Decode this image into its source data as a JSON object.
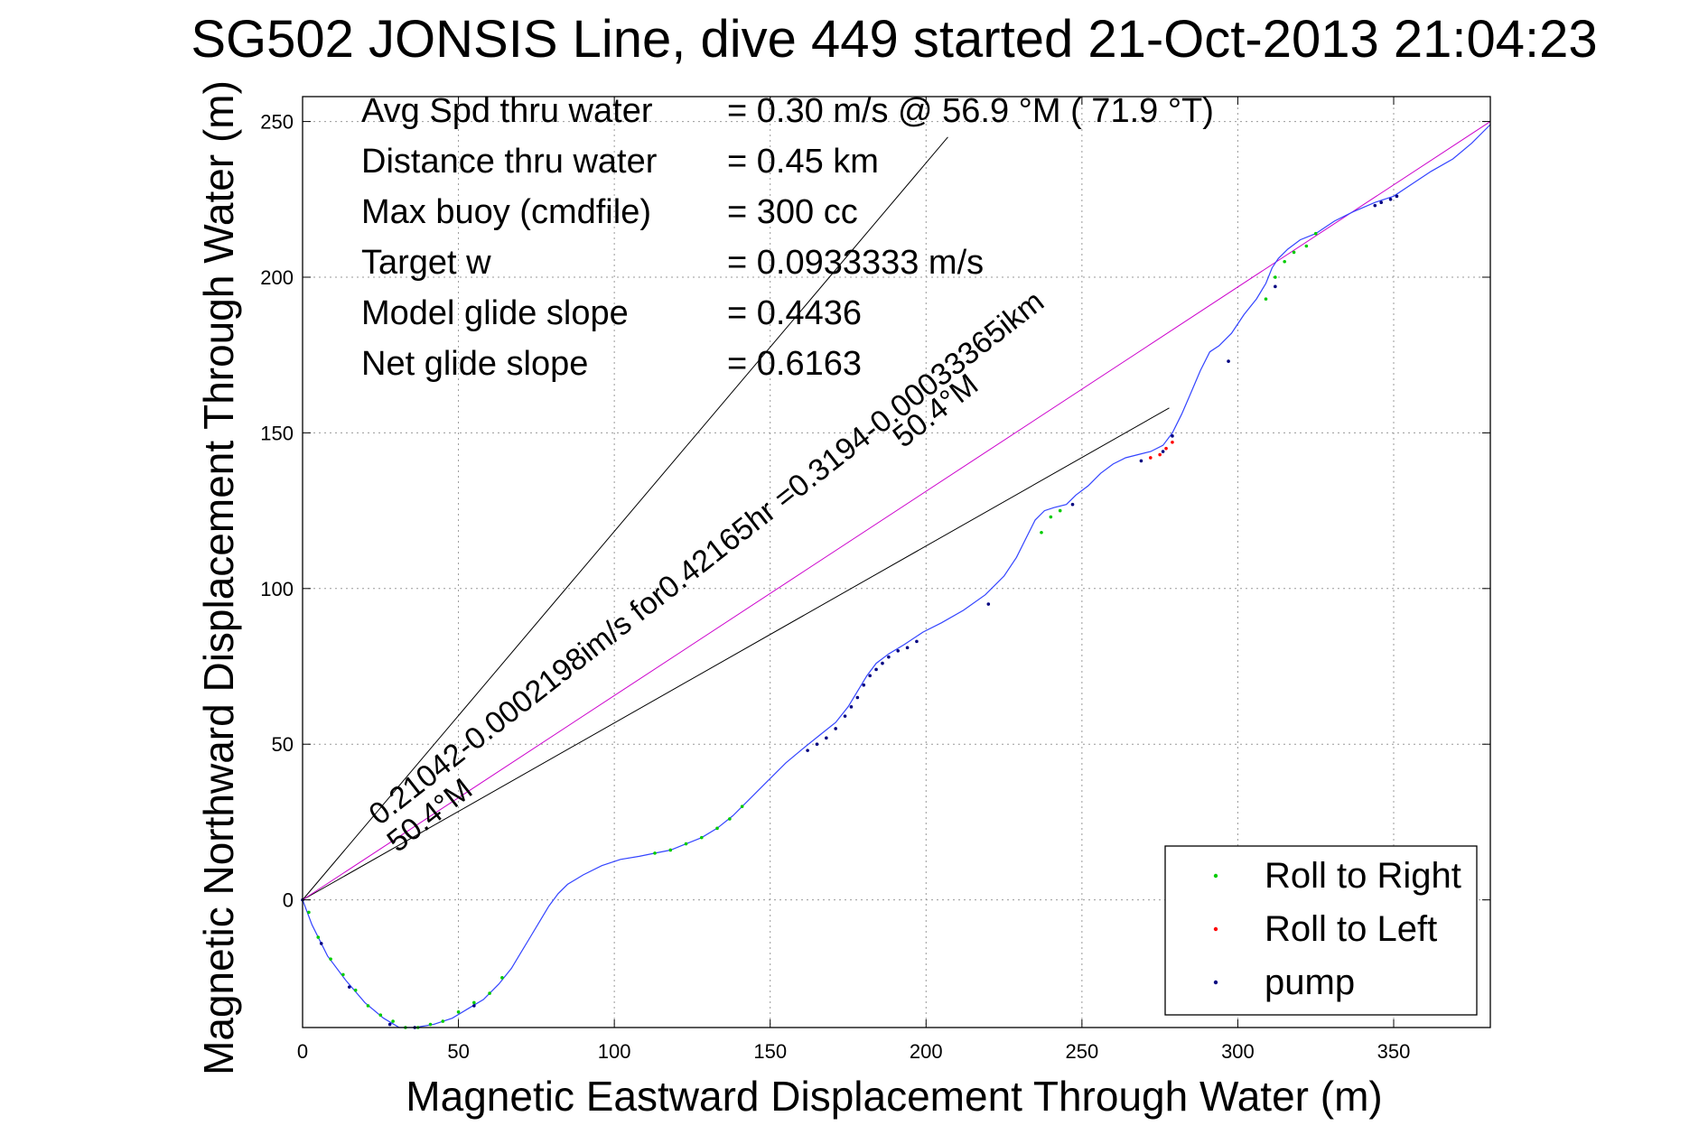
{
  "chart_data": {
    "type": "line",
    "title": "SG502 JONSIS Line, dive 449 started 21-Oct-2013 21:04:23",
    "xlabel": "Magnetic Eastward Displacement Through Water (m)",
    "ylabel": "Magnetic Northward Displacement Through Water (m)",
    "xlim": [
      0,
      381
    ],
    "ylim": [
      -41,
      258
    ],
    "xticks": [
      "0",
      "50",
      "100",
      "150",
      "200",
      "250",
      "300",
      "350"
    ],
    "yticks": [
      "0",
      "50",
      "100",
      "150",
      "200",
      "250"
    ],
    "grid": true,
    "legend_position": "bottom-right",
    "stats": [
      {
        "label": "Avg Spd thru water",
        "value": "=  0.30 m/s @  56.9 °M ( 71.9 °T)"
      },
      {
        "label": "Distance thru water",
        "value": "=  0.45 km"
      },
      {
        "label": "Max buoy (cmdfile)",
        "value": "= 300 cc"
      },
      {
        "label": "Target w",
        "value": "= 0.0933333 m/s"
      },
      {
        "label": "Model glide slope",
        "value": "= 0.4436"
      },
      {
        "label": "Net glide slope",
        "value": "= 0.6163"
      }
    ],
    "slope_line_labels": {
      "long": "0.21042-0.0002198im/s for0.42165hr =0.3194-0.00033365ikm",
      "long_heading": "50.4°M",
      "short_heading": "50.4°M"
    },
    "reference_lines": [
      {
        "name": "upper glide bound",
        "x": [
          0,
          207
        ],
        "y": [
          0,
          245
        ]
      },
      {
        "name": "lower glide bound",
        "x": [
          0,
          278
        ],
        "y": [
          0,
          158
        ]
      },
      {
        "name": "net displacement",
        "x": [
          0,
          381
        ],
        "y": [
          0,
          250
        ]
      }
    ],
    "track": {
      "x": [
        0,
        3,
        8,
        14,
        20,
        26,
        31,
        36,
        42,
        48,
        53,
        58,
        63,
        67,
        70,
        73,
        76,
        79,
        82,
        85,
        90,
        96,
        102,
        108,
        113,
        118,
        123,
        128,
        133,
        138,
        143,
        149,
        155,
        161,
        166,
        171,
        175,
        178,
        181,
        184,
        188,
        193,
        199,
        205,
        212,
        219,
        225,
        229,
        232,
        235,
        238,
        241,
        245,
        248,
        252,
        256,
        260,
        264,
        268,
        272,
        276,
        279,
        282,
        285,
        288,
        291,
        294,
        298,
        302,
        306,
        309,
        311,
        313,
        316,
        320,
        325,
        331,
        337,
        344,
        350,
        356,
        362,
        369,
        375,
        381
      ],
      "y": [
        0,
        -8,
        -18,
        -26,
        -33,
        -38,
        -41,
        -41,
        -40,
        -38,
        -35,
        -32,
        -27,
        -22,
        -17,
        -12,
        -7,
        -2,
        2,
        5,
        8,
        11,
        13,
        14,
        15,
        16,
        18,
        20,
        23,
        27,
        32,
        38,
        44,
        49,
        53,
        57,
        62,
        67,
        72,
        76,
        79,
        82,
        86,
        89,
        93,
        98,
        104,
        110,
        116,
        122,
        125,
        126,
        127,
        130,
        133,
        137,
        140,
        142,
        143,
        144,
        146,
        150,
        156,
        163,
        170,
        176,
        178,
        182,
        188,
        193,
        198,
        203,
        206,
        209,
        212,
        214,
        218,
        221,
        224,
        226,
        230,
        234,
        238,
        243,
        249
      ]
    },
    "series": [
      {
        "name": "Roll to Right",
        "color": "#00cc00",
        "x": [
          2,
          5,
          9,
          13,
          17,
          21,
          25,
          29,
          33,
          37,
          41,
          45,
          50,
          55,
          60,
          64,
          113,
          118,
          123,
          128,
          133,
          137,
          141,
          237,
          240,
          243,
          309,
          312,
          315,
          318,
          322,
          325
        ],
        "y": [
          -4,
          -12,
          -19,
          -24,
          -29,
          -34,
          -37,
          -39,
          -41,
          -41,
          -40,
          -39,
          -36,
          -33,
          -30,
          -25,
          15,
          16,
          18,
          20,
          23,
          26,
          30,
          118,
          123,
          125,
          193,
          200,
          205,
          208,
          210,
          214
        ]
      },
      {
        "name": "Roll to Left",
        "color": "#ff0000",
        "x": [
          272,
          275,
          277,
          279
        ],
        "y": [
          142,
          143,
          145,
          147
        ]
      },
      {
        "name": "pump",
        "color": "#000080",
        "x": [
          0,
          6,
          15,
          28,
          36,
          55,
          162,
          165,
          168,
          171,
          174,
          176,
          178,
          180,
          182,
          184,
          186,
          188,
          191,
          194,
          197,
          220,
          247,
          269,
          276,
          279,
          297,
          312,
          344,
          346,
          349,
          351
        ],
        "y": [
          0,
          -14,
          -28,
          -40,
          -41,
          -34,
          48,
          50,
          52,
          55,
          59,
          62,
          65,
          69,
          72,
          74,
          76,
          78,
          80,
          81,
          83,
          95,
          127,
          141,
          144,
          149,
          173,
          197,
          223,
          224,
          225,
          226
        ]
      }
    ]
  }
}
